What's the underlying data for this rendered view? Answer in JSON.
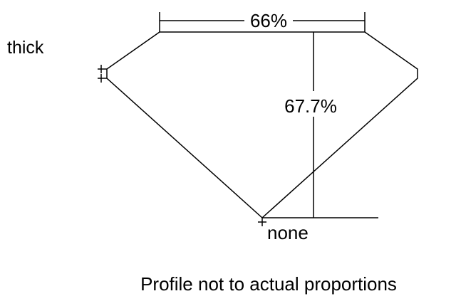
{
  "labels": {
    "girdle": "thick",
    "table": "66%",
    "depth": "67.7%",
    "culet": "none",
    "note": "Profile not to actual proportions"
  },
  "colors": {
    "line": "#000000",
    "background": "#ffffff"
  }
}
